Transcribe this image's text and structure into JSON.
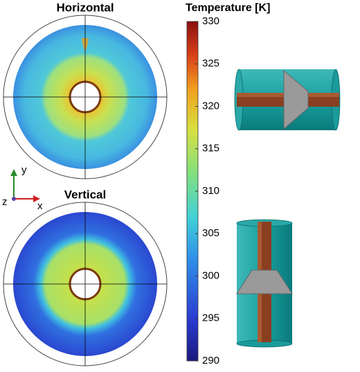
{
  "panels": [
    {
      "title": "Horizontal"
    },
    {
      "title": "Vertical"
    }
  ],
  "axes_triad": {
    "y": "y",
    "x": "x",
    "z": "z"
  },
  "colorbar": {
    "title": "Temperature [K]",
    "lim": [
      290,
      330
    ],
    "ticks": [
      290,
      295,
      300,
      305,
      310,
      315,
      320,
      325,
      330
    ]
  }
}
